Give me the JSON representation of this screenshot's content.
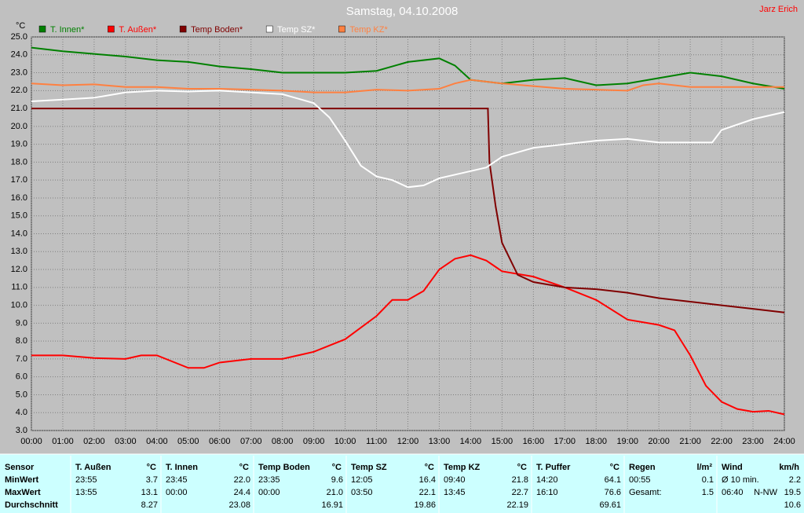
{
  "chart_data": {
    "type": "line",
    "title": "Samstag, 04.10.2008",
    "y_label": "°C",
    "xlim": [
      0,
      24
    ],
    "ylim": [
      3,
      25
    ],
    "grid": true,
    "legend": "top",
    "xticks": [
      {
        "value": 0,
        "label": "00:00"
      },
      {
        "value": 1,
        "label": "01:00"
      },
      {
        "value": 2,
        "label": "02:00"
      },
      {
        "value": 3,
        "label": "03:00"
      },
      {
        "value": 4,
        "label": "04:00"
      },
      {
        "value": 5,
        "label": "05:00"
      },
      {
        "value": 6,
        "label": "06:00"
      },
      {
        "value": 7,
        "label": "07:00"
      },
      {
        "value": 8,
        "label": "08:00"
      },
      {
        "value": 9,
        "label": "09:00"
      },
      {
        "value": 10,
        "label": "10:00"
      },
      {
        "value": 11,
        "label": "11:00"
      },
      {
        "value": 12,
        "label": "12:00"
      },
      {
        "value": 13,
        "label": "13:00"
      },
      {
        "value": 14,
        "label": "14:00"
      },
      {
        "value": 15,
        "label": "15:00"
      },
      {
        "value": 16,
        "label": "16:00"
      },
      {
        "value": 17,
        "label": "17:00"
      },
      {
        "value": 18,
        "label": "18:00"
      },
      {
        "value": 19,
        "label": "19:00"
      },
      {
        "value": 20,
        "label": "20:00"
      },
      {
        "value": 21,
        "label": "21:00"
      },
      {
        "value": 22,
        "label": "22:00"
      },
      {
        "value": 23,
        "label": "23:00"
      },
      {
        "value": 24,
        "label": "24:00"
      }
    ],
    "yticks": [
      {
        "value": 3,
        "label": "3.0"
      },
      {
        "value": 4,
        "label": "4.0"
      },
      {
        "value": 5,
        "label": "5.0"
      },
      {
        "value": 6,
        "label": "6.0"
      },
      {
        "value": 7,
        "label": "7.0"
      },
      {
        "value": 8,
        "label": "8.0"
      },
      {
        "value": 9,
        "label": "9.0"
      },
      {
        "value": 10,
        "label": "10.0"
      },
      {
        "value": 11,
        "label": "11.0"
      },
      {
        "value": 12,
        "label": "12.0"
      },
      {
        "value": 13,
        "label": "13.0"
      },
      {
        "value": 14,
        "label": "14.0"
      },
      {
        "value": 15,
        "label": "15.0"
      },
      {
        "value": 16,
        "label": "16.0"
      },
      {
        "value": 17,
        "label": "17.0"
      },
      {
        "value": 18,
        "label": "18.0"
      },
      {
        "value": 19,
        "label": "19.0"
      },
      {
        "value": 20,
        "label": "20.0"
      },
      {
        "value": 21,
        "label": "21.0"
      },
      {
        "value": 22,
        "label": "22.0"
      },
      {
        "value": 23,
        "label": "23.0"
      },
      {
        "value": 24,
        "label": "24.0"
      },
      {
        "value": 25,
        "label": "25.0"
      }
    ],
    "series": [
      {
        "name": "T. Innen*",
        "color": "#008000",
        "x": [
          0,
          1,
          2,
          3,
          4,
          5,
          6,
          7,
          8,
          9,
          10,
          11,
          12,
          13,
          13.5,
          14,
          15,
          16,
          17,
          18,
          19,
          20,
          21,
          22,
          23,
          24
        ],
        "values": [
          24.4,
          24.2,
          24.05,
          23.9,
          23.7,
          23.6,
          23.35,
          23.2,
          23.0,
          23.0,
          23.0,
          23.1,
          23.6,
          23.8,
          23.4,
          22.6,
          22.4,
          22.6,
          22.7,
          22.3,
          22.4,
          22.7,
          23.0,
          22.8,
          22.4,
          22.1
        ]
      },
      {
        "name": "T. Außen*",
        "color": "#ff0000",
        "x": [
          0,
          1,
          2,
          3,
          3.5,
          4,
          5,
          5.5,
          6,
          7,
          8,
          9,
          10,
          11,
          11.5,
          12,
          12.5,
          13,
          13.5,
          14,
          14.5,
          15,
          16,
          17,
          18,
          19,
          20,
          20.5,
          21,
          21.5,
          22,
          22.5,
          23,
          23.5,
          24
        ],
        "values": [
          7.2,
          7.2,
          7.05,
          7.0,
          7.2,
          7.2,
          6.5,
          6.5,
          6.8,
          7.0,
          7.0,
          7.4,
          8.1,
          9.4,
          10.3,
          10.3,
          10.8,
          12.0,
          12.6,
          12.8,
          12.5,
          11.9,
          11.6,
          11.0,
          10.3,
          9.2,
          8.9,
          8.6,
          7.2,
          5.5,
          4.6,
          4.2,
          4.05,
          4.1,
          3.9
        ]
      },
      {
        "name": "Temp Boden*",
        "color": "#800000",
        "x": [
          0,
          14.55,
          14.6,
          14.8,
          15,
          15.5,
          16,
          17,
          18,
          19,
          20,
          21,
          22,
          23,
          24
        ],
        "values": [
          21.0,
          21.0,
          18.0,
          15.5,
          13.5,
          11.7,
          11.3,
          11.0,
          10.9,
          10.7,
          10.4,
          10.2,
          10.0,
          9.8,
          9.6
        ]
      },
      {
        "name": "Temp SZ*",
        "color": "#ffffff",
        "x": [
          0,
          1,
          2,
          3,
          4,
          5,
          6,
          7,
          8,
          9,
          9.5,
          10,
          10.5,
          11,
          11.5,
          12,
          12.5,
          13,
          14,
          14.5,
          15,
          16,
          17,
          18,
          19,
          20,
          21,
          21.7,
          22,
          23,
          24
        ],
        "values": [
          21.4,
          21.5,
          21.6,
          21.9,
          22.0,
          21.95,
          22.0,
          21.9,
          21.8,
          21.3,
          20.5,
          19.2,
          17.8,
          17.2,
          17.0,
          16.6,
          16.7,
          17.1,
          17.5,
          17.7,
          18.3,
          18.8,
          19.0,
          19.2,
          19.3,
          19.1,
          19.1,
          19.1,
          19.8,
          20.4,
          20.8
        ]
      },
      {
        "name": "Temp KZ*",
        "color": "#ff8040",
        "x": [
          0,
          1,
          2,
          3,
          4,
          5,
          6,
          7,
          8,
          9,
          10,
          11,
          12,
          13,
          13.5,
          14,
          15,
          16,
          17,
          18,
          19,
          19.5,
          20,
          21,
          22,
          23,
          24
        ],
        "values": [
          22.4,
          22.3,
          22.35,
          22.2,
          22.2,
          22.1,
          22.1,
          22.05,
          22.0,
          21.9,
          21.9,
          22.05,
          22.0,
          22.1,
          22.4,
          22.6,
          22.4,
          22.25,
          22.1,
          22.05,
          22.0,
          22.3,
          22.4,
          22.2,
          22.2,
          22.2,
          22.2
        ]
      }
    ]
  },
  "author": "Jarz Erich",
  "table": {
    "row_labels": [
      "Sensor",
      "MinWert",
      "MaxWert",
      "Durchschnitt"
    ],
    "columns": [
      {
        "name": "T. Außen",
        "unit": "°C",
        "rows": [
          [
            "23:55",
            "3.7"
          ],
          [
            "13:55",
            "13.1"
          ],
          [
            null,
            "8.27"
          ]
        ]
      },
      {
        "name": "T. Innen",
        "unit": "°C",
        "rows": [
          [
            "23:45",
            "22.0"
          ],
          [
            "00:00",
            "24.4"
          ],
          [
            null,
            "23.08"
          ]
        ]
      },
      {
        "name": "Temp Boden",
        "unit": "°C",
        "rows": [
          [
            "23:35",
            "9.6"
          ],
          [
            "00:00",
            "21.0"
          ],
          [
            null,
            "16.91"
          ]
        ]
      },
      {
        "name": "Temp SZ",
        "unit": "°C",
        "rows": [
          [
            "12:05",
            "16.4"
          ],
          [
            "03:50",
            "22.1"
          ],
          [
            null,
            "19.86"
          ]
        ]
      },
      {
        "name": "Temp KZ",
        "unit": "°C",
        "rows": [
          [
            "09:40",
            "21.8"
          ],
          [
            "13:45",
            "22.7"
          ],
          [
            null,
            "22.19"
          ]
        ]
      },
      {
        "name": "T. Puffer",
        "unit": "°C",
        "rows": [
          [
            "14:20",
            "64.1"
          ],
          [
            "16:10",
            "76.6"
          ],
          [
            null,
            "69.61"
          ]
        ]
      },
      {
        "name": "Regen",
        "unit": "l/m²",
        "rows": [
          [
            "00:55",
            "0.1"
          ],
          [
            "Gesamt:",
            "1.5"
          ]
        ]
      },
      {
        "name": "Wind",
        "unit": "km/h",
        "rows": [
          [
            "Ø 10 min.",
            "2.2"
          ],
          [
            "06:40",
            "N-NW",
            "19.5"
          ],
          [
            null,
            "10.6"
          ]
        ]
      }
    ]
  }
}
